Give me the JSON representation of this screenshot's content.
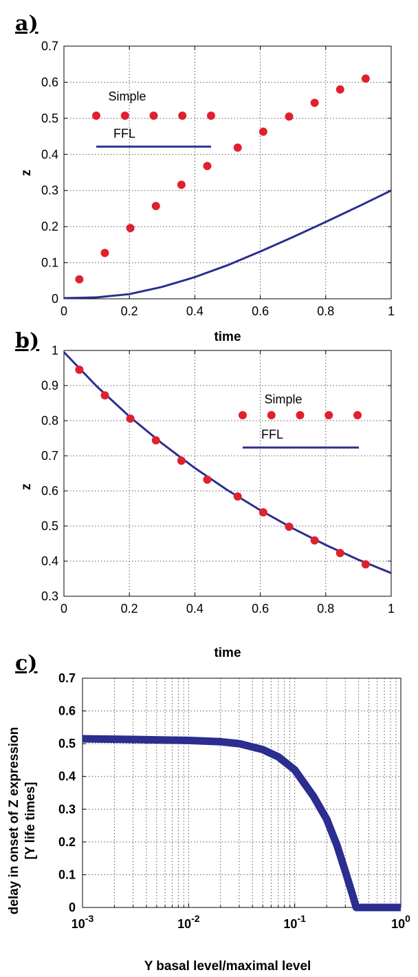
{
  "chart_data": [
    {
      "panel": "a)",
      "type": "line",
      "xlabel": "time",
      "ylabel": "z",
      "xlim": [
        0,
        1
      ],
      "ylim": [
        0,
        0.7
      ],
      "x_ticks": [
        "0",
        "0.2",
        "0.4",
        "0.6",
        "0.8",
        "1"
      ],
      "y_ticks": [
        "0",
        "0.1",
        "0.2",
        "0.3",
        "0.4",
        "0.5",
        "0.6",
        "0.7"
      ],
      "grid": true,
      "legend_placement": "top-left",
      "series": [
        {
          "name": "Simple",
          "style": "markers",
          "color": "#e0202e",
          "x": [
            0.047,
            0.125,
            0.203,
            0.281,
            0.359,
            0.438,
            0.531,
            0.609,
            0.688,
            0.766,
            0.844,
            0.922
          ],
          "y": [
            0.054,
            0.127,
            0.196,
            0.257,
            0.316,
            0.368,
            0.419,
            0.463,
            0.505,
            0.543,
            0.58,
            0.61
          ]
        },
        {
          "name": "FFL",
          "style": "line",
          "color": "#2b2d8f",
          "x": [
            0,
            0.1,
            0.2,
            0.3,
            0.4,
            0.5,
            0.6,
            0.7,
            0.8,
            0.9,
            1.0
          ],
          "y": [
            0.002,
            0.004,
            0.013,
            0.033,
            0.06,
            0.093,
            0.131,
            0.171,
            0.213,
            0.256,
            0.3
          ]
        }
      ]
    },
    {
      "panel": "b)",
      "type": "line",
      "xlabel": "time",
      "ylabel": "z",
      "xlim": [
        0,
        1
      ],
      "ylim": [
        0.3,
        1
      ],
      "x_ticks": [
        "0",
        "0.2",
        "0.4",
        "0.6",
        "0.8",
        "1"
      ],
      "y_ticks": [
        "0.3",
        "0.4",
        "0.5",
        "0.6",
        "0.7",
        "0.8",
        "0.9",
        "1"
      ],
      "grid": true,
      "legend_placement": "center-right",
      "series": [
        {
          "name": "Simple",
          "style": "markers",
          "color": "#e0202e",
          "x": [
            0.047,
            0.125,
            0.203,
            0.281,
            0.359,
            0.438,
            0.531,
            0.609,
            0.688,
            0.766,
            0.844,
            0.922
          ],
          "y": [
            0.945,
            0.872,
            0.806,
            0.744,
            0.686,
            0.632,
            0.584,
            0.539,
            0.498,
            0.459,
            0.423,
            0.391
          ]
        },
        {
          "name": "FFL",
          "style": "line",
          "color": "#2b2d8f",
          "x": [
            0,
            0.1,
            0.2,
            0.3,
            0.4,
            0.5,
            0.6,
            0.7,
            0.8,
            0.9,
            1.0
          ],
          "y": [
            0.995,
            0.898,
            0.812,
            0.735,
            0.665,
            0.602,
            0.545,
            0.493,
            0.446,
            0.404,
            0.366
          ]
        }
      ]
    },
    {
      "panel": "c)",
      "type": "line",
      "xlabel": "Y basal level/maximal level",
      "ylabel": "delay in onset of Z expression",
      "ylabel2": "[Y life times]",
      "xscale": "log",
      "xlim": [
        0.001,
        1
      ],
      "ylim": [
        0,
        0.7
      ],
      "x_ticks": [
        {
          "base": "10",
          "exp": "-3"
        },
        {
          "base": "10",
          "exp": "-2"
        },
        {
          "base": "10",
          "exp": "-1"
        },
        {
          "base": "10",
          "exp": "0"
        }
      ],
      "y_ticks": [
        "0",
        "0.1",
        "0.2",
        "0.3",
        "0.4",
        "0.5",
        "0.6",
        "0.7"
      ],
      "grid": true,
      "series": [
        {
          "style": "thick-line",
          "color": "#2b2d8f",
          "x": [
            0.001,
            0.003,
            0.01,
            0.02,
            0.03,
            0.05,
            0.07,
            0.1,
            0.15,
            0.2,
            0.25,
            0.3,
            0.35,
            0.38,
            0.4,
            0.5,
            0.7,
            1.0
          ],
          "y": [
            0.515,
            0.513,
            0.51,
            0.506,
            0.5,
            0.482,
            0.46,
            0.42,
            0.34,
            0.27,
            0.19,
            0.11,
            0.04,
            0.0,
            0.0,
            0.0,
            0.0,
            0.0
          ]
        }
      ]
    }
  ],
  "legend": {
    "simple_label": "Simple",
    "ffl_label": "FFL"
  }
}
